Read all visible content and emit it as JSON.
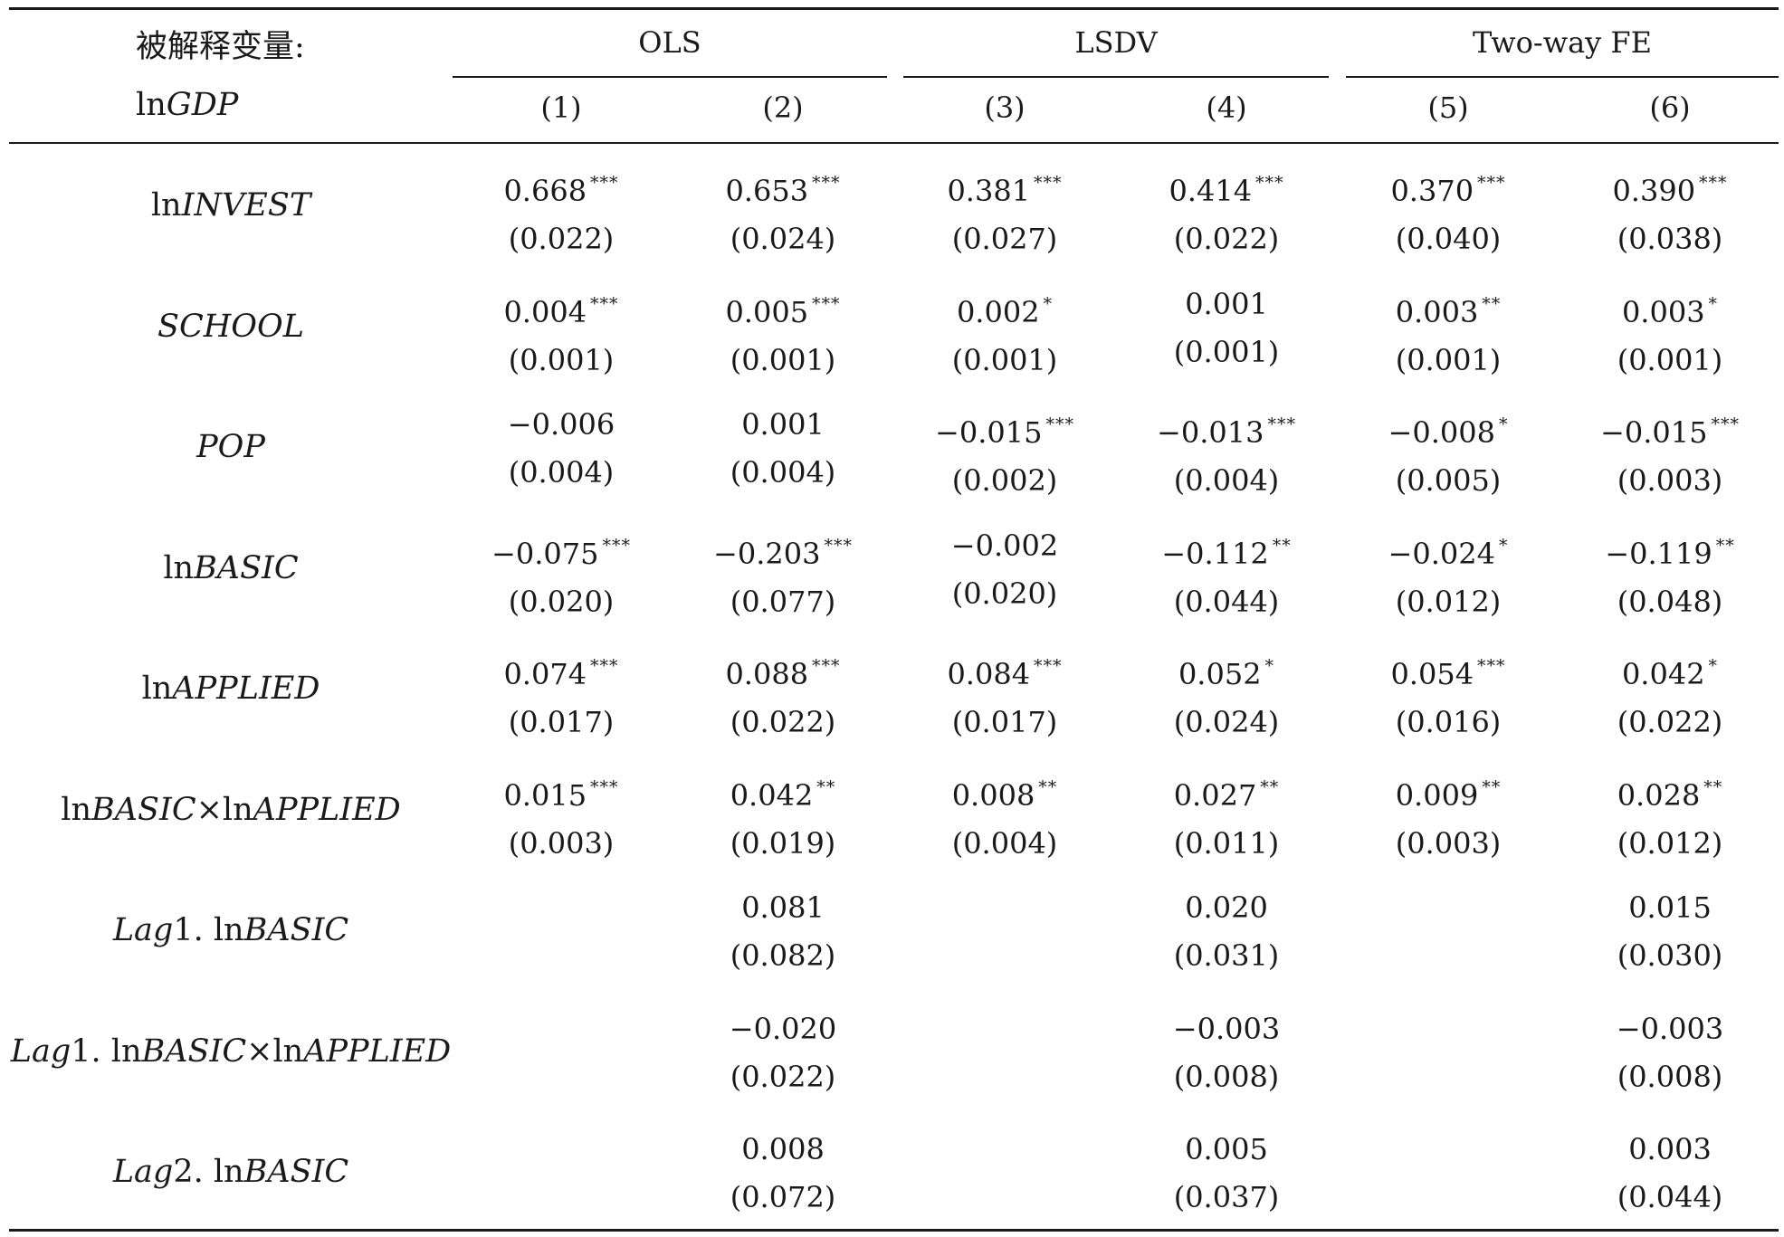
{
  "header": {
    "dep_var_line1": "被解释变量:",
    "dep_var_prefix": "ln",
    "dep_var_name": "GDP",
    "groups": [
      "OLS",
      "LSDV",
      "Two-way FE"
    ],
    "columns": [
      "(1)",
      "(2)",
      "(3)",
      "(4)",
      "(5)",
      "(6)"
    ]
  },
  "rows": [
    {
      "label": [
        {
          "t": "ln",
          "i": false
        },
        {
          "t": "INVEST",
          "i": true
        }
      ],
      "cells": [
        {
          "coef": "0.668",
          "stars": "***",
          "se": "(0.022)"
        },
        {
          "coef": "0.653",
          "stars": "***",
          "se": "(0.024)"
        },
        {
          "coef": "0.381",
          "stars": "***",
          "se": "(0.027)"
        },
        {
          "coef": "0.414",
          "stars": "***",
          "se": "(0.022)"
        },
        {
          "coef": "0.370",
          "stars": "***",
          "se": "(0.040)"
        },
        {
          "coef": "0.390",
          "stars": "***",
          "se": "(0.038)"
        }
      ]
    },
    {
      "label": [
        {
          "t": "SCHOOL",
          "i": true
        }
      ],
      "cells": [
        {
          "coef": "0.004",
          "stars": "***",
          "se": "(0.001)"
        },
        {
          "coef": "0.005",
          "stars": "***",
          "se": "(0.001)"
        },
        {
          "coef": "0.002",
          "stars": "*",
          "se": "(0.001)"
        },
        {
          "coef": "0.001",
          "stars": "",
          "se": "(0.001)"
        },
        {
          "coef": "0.003",
          "stars": "**",
          "se": "(0.001)"
        },
        {
          "coef": "0.003",
          "stars": "*",
          "se": "(0.001)"
        }
      ]
    },
    {
      "label": [
        {
          "t": "POP",
          "i": true
        }
      ],
      "cells": [
        {
          "coef": "−0.006",
          "stars": "",
          "se": "(0.004)"
        },
        {
          "coef": "0.001",
          "stars": "",
          "se": "(0.004)"
        },
        {
          "coef": "−0.015",
          "stars": "***",
          "se": "(0.002)"
        },
        {
          "coef": "−0.013",
          "stars": "***",
          "se": "(0.004)"
        },
        {
          "coef": "−0.008",
          "stars": "*",
          "se": "(0.005)"
        },
        {
          "coef": "−0.015",
          "stars": "***",
          "se": "(0.003)"
        }
      ]
    },
    {
      "label": [
        {
          "t": "ln",
          "i": false
        },
        {
          "t": "BASIC",
          "i": true
        }
      ],
      "cells": [
        {
          "coef": "−0.075",
          "stars": "***",
          "se": "(0.020)"
        },
        {
          "coef": "−0.203",
          "stars": "***",
          "se": "(0.077)"
        },
        {
          "coef": "−0.002",
          "stars": "",
          "se": "(0.020)"
        },
        {
          "coef": "−0.112",
          "stars": "**",
          "se": "(0.044)"
        },
        {
          "coef": "−0.024",
          "stars": "*",
          "se": "(0.012)"
        },
        {
          "coef": "−0.119",
          "stars": "**",
          "se": "(0.048)"
        }
      ]
    },
    {
      "label": [
        {
          "t": "ln",
          "i": false
        },
        {
          "t": "APPLIED",
          "i": true
        }
      ],
      "cells": [
        {
          "coef": "0.074",
          "stars": "***",
          "se": "(0.017)"
        },
        {
          "coef": "0.088",
          "stars": "***",
          "se": "(0.022)"
        },
        {
          "coef": "0.084",
          "stars": "***",
          "se": "(0.017)"
        },
        {
          "coef": "0.052",
          "stars": "*",
          "se": "(0.024)"
        },
        {
          "coef": "0.054",
          "stars": "***",
          "se": "(0.016)"
        },
        {
          "coef": "0.042",
          "stars": "*",
          "se": "(0.022)"
        }
      ]
    },
    {
      "label": [
        {
          "t": "ln",
          "i": false
        },
        {
          "t": "BASIC",
          "i": true
        },
        {
          "t": "×ln",
          "i": false
        },
        {
          "t": "APPLIED",
          "i": true
        }
      ],
      "cells": [
        {
          "coef": "0.015",
          "stars": "***",
          "se": "(0.003)"
        },
        {
          "coef": "0.042",
          "stars": "**",
          "se": "(0.019)"
        },
        {
          "coef": "0.008",
          "stars": "**",
          "se": "(0.004)"
        },
        {
          "coef": "0.027",
          "stars": "**",
          "se": "(0.011)"
        },
        {
          "coef": "0.009",
          "stars": "**",
          "se": "(0.003)"
        },
        {
          "coef": "0.028",
          "stars": "**",
          "se": "(0.012)"
        }
      ]
    },
    {
      "label": [
        {
          "t": "Lag",
          "i": true
        },
        {
          "t": "1. ln",
          "i": false
        },
        {
          "t": "BASIC",
          "i": true
        }
      ],
      "cells": [
        null,
        {
          "coef": "0.081",
          "stars": "",
          "se": "(0.082)"
        },
        null,
        {
          "coef": "0.020",
          "stars": "",
          "se": "(0.031)"
        },
        null,
        {
          "coef": "0.015",
          "stars": "",
          "se": "(0.030)"
        }
      ]
    },
    {
      "label": [
        {
          "t": "Lag",
          "i": true
        },
        {
          "t": "1. ln",
          "i": false
        },
        {
          "t": "BASIC",
          "i": true
        },
        {
          "t": "×ln",
          "i": false
        },
        {
          "t": "APPLIED",
          "i": true
        }
      ],
      "cells": [
        null,
        {
          "coef": "−0.020",
          "stars": "",
          "se": "(0.022)"
        },
        null,
        {
          "coef": "−0.003",
          "stars": "",
          "se": "(0.008)"
        },
        null,
        {
          "coef": "−0.003",
          "stars": "",
          "se": "(0.008)"
        }
      ]
    },
    {
      "label": [
        {
          "t": "Lag",
          "i": true
        },
        {
          "t": "2. ln",
          "i": false
        },
        {
          "t": "BASIC",
          "i": true
        }
      ],
      "cells": [
        null,
        {
          "coef": "0.008",
          "stars": "",
          "se": "(0.072)"
        },
        null,
        {
          "coef": "0.005",
          "stars": "",
          "se": "(0.037)"
        },
        null,
        {
          "coef": "0.003",
          "stars": "",
          "se": "(0.044)"
        }
      ]
    }
  ]
}
